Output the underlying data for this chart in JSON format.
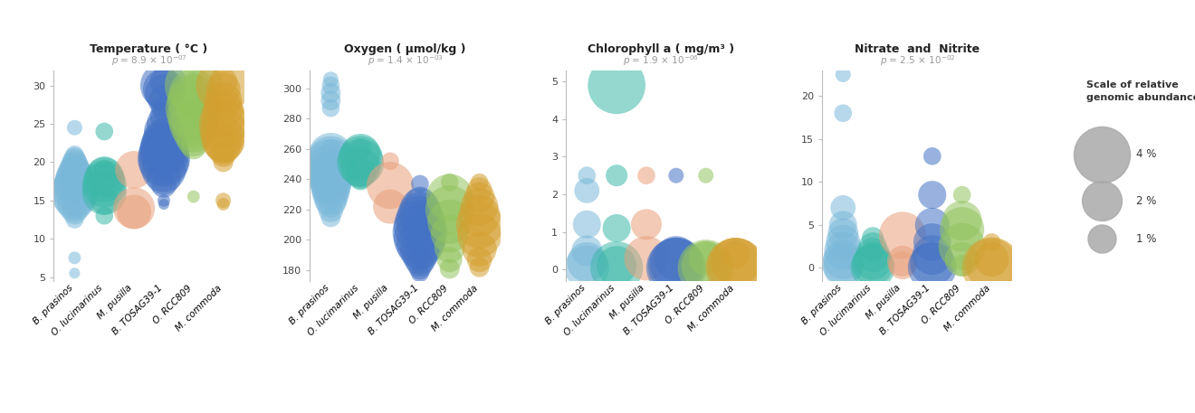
{
  "species": [
    "B. prasinos",
    "O. lucimarinus",
    "M. pusilla",
    "B. TOSAG39-1",
    "O. RCC809",
    "M. commoda"
  ],
  "species_colors": [
    "#7ab8d9",
    "#3cb8a8",
    "#e8a07a",
    "#4472c4",
    "#92c45e",
    "#d4a030"
  ],
  "panels": [
    {
      "title": "Temperature ( °C )",
      "pvalue_base": "p = 8.9 × 10",
      "pvalue_exp": "-07",
      "ylim": [
        4.5,
        32
      ],
      "yticks": [
        5,
        10,
        15,
        20,
        25,
        30
      ],
      "data": [
        {
          "y": [
            5.5,
            7.5,
            12.5,
            13.5,
            14.5,
            15.5,
            16.0,
            16.5,
            17.0,
            17.5,
            18.0,
            18.5,
            19.0,
            19.5,
            20.0,
            20.5,
            21.0,
            24.5
          ],
          "s": [
            0.15,
            0.2,
            0.4,
            0.8,
            1.5,
            2.5,
            2.8,
            2.5,
            2.2,
            2.0,
            1.8,
            1.5,
            1.2,
            1.0,
            0.8,
            0.6,
            0.4,
            0.3
          ]
        },
        {
          "y": [
            13.0,
            15.0,
            16.0,
            17.0,
            17.5,
            18.0,
            18.5,
            19.0,
            24.0
          ],
          "s": [
            0.4,
            1.0,
            2.5,
            2.5,
            2.2,
            2.0,
            1.5,
            0.5,
            0.4
          ]
        },
        {
          "y": [
            13.5,
            14.0,
            19.0
          ],
          "s": [
            1.5,
            2.2,
            1.8
          ]
        },
        {
          "y": [
            14.5,
            15.0,
            17.0,
            18.0,
            19.0,
            20.0,
            20.5,
            21.0,
            21.5,
            22.0,
            22.5,
            23.0,
            24.0,
            25.0,
            26.0,
            27.0,
            28.0,
            29.0,
            29.5,
            30.0,
            30.5
          ],
          "s": [
            0.15,
            0.2,
            0.8,
            1.5,
            2.5,
            3.2,
            3.5,
            3.2,
            3.0,
            2.8,
            2.5,
            2.2,
            2.0,
            1.5,
            1.0,
            0.8,
            1.2,
            1.8,
            2.2,
            2.8,
            1.0
          ]
        },
        {
          "y": [
            15.5,
            22.0,
            23.0,
            24.0,
            25.0,
            26.0,
            27.0,
            28.0,
            29.0,
            30.0,
            30.5
          ],
          "s": [
            0.2,
            0.8,
            1.5,
            2.2,
            3.0,
            3.5,
            4.0,
            3.5,
            3.0,
            4.2,
            0.5
          ]
        },
        {
          "y": [
            14.5,
            15.0,
            20.0,
            21.0,
            22.0,
            22.5,
            23.0,
            24.0,
            25.0,
            26.0,
            27.0,
            28.0,
            29.5,
            30.0,
            30.5
          ],
          "s": [
            0.2,
            0.3,
            0.5,
            0.8,
            1.5,
            2.0,
            2.5,
            2.8,
            3.0,
            2.5,
            2.0,
            1.8,
            1.5,
            3.8,
            1.0
          ]
        }
      ]
    },
    {
      "title": "Oxygen ( μmol/kg )",
      "pvalue_base": "p = 1.4 × 10",
      "pvalue_exp": "-03",
      "ylim": [
        173,
        312
      ],
      "yticks": [
        180,
        200,
        220,
        240,
        260,
        280,
        300
      ],
      "data": [
        {
          "y": [
            215,
            220,
            225,
            228,
            232,
            235,
            238,
            241,
            244,
            247,
            250,
            253,
            256,
            260,
            287,
            292,
            297,
            302,
            306
          ],
          "s": [
            0.5,
            0.8,
            1.2,
            1.5,
            1.8,
            2.0,
            2.2,
            2.5,
            2.8,
            3.0,
            3.2,
            2.8,
            2.5,
            0.5,
            0.4,
            0.5,
            0.5,
            0.4,
            0.3
          ]
        },
        {
          "y": [
            240,
            244,
            248,
            251,
            254,
            257,
            260
          ],
          "s": [
            0.6,
            1.2,
            2.0,
            2.8,
            2.5,
            2.0,
            0.6
          ]
        },
        {
          "y": [
            222,
            236,
            252
          ],
          "s": [
            1.5,
            2.8,
            0.4
          ]
        },
        {
          "y": [
            178,
            181,
            185,
            189,
            193,
            197,
            201,
            205,
            209,
            213,
            217,
            221,
            225,
            237
          ],
          "s": [
            0.4,
            0.6,
            1.0,
            1.5,
            2.0,
            2.8,
            3.5,
            3.8,
            3.5,
            3.0,
            2.5,
            2.0,
            1.2,
            0.4
          ]
        },
        {
          "y": [
            181,
            187,
            195,
            204,
            212,
            220,
            228,
            238
          ],
          "s": [
            0.5,
            0.8,
            1.2,
            1.8,
            2.5,
            3.0,
            2.8,
            0.4
          ]
        },
        {
          "y": [
            182,
            187,
            194,
            203,
            210,
            216,
            222,
            228,
            233,
            238
          ],
          "s": [
            0.5,
            0.8,
            1.5,
            2.5,
            2.8,
            2.2,
            1.8,
            1.2,
            0.8,
            0.4
          ]
        }
      ]
    },
    {
      "title": "Chlorophyll a ( mg/m³ )",
      "pvalue_base": "p = 1.9 × 10",
      "pvalue_exp": "-06",
      "ylim": [
        -0.3,
        5.3
      ],
      "yticks": [
        0,
        1,
        2,
        3,
        4,
        5
      ],
      "data": [
        {
          "y": [
            0.05,
            0.2,
            0.5,
            1.2,
            2.1,
            2.5
          ],
          "s": [
            2.5,
            2.0,
            1.2,
            1.0,
            0.8,
            0.4
          ]
        },
        {
          "y": [
            0.05,
            0.1,
            1.1,
            2.5,
            4.9
          ],
          "s": [
            3.5,
            2.0,
            1.0,
            0.6,
            4.2
          ]
        },
        {
          "y": [
            0.3,
            1.2,
            2.5
          ],
          "s": [
            2.5,
            1.2,
            0.4
          ]
        },
        {
          "y": [
            0.05,
            0.1,
            0.15,
            0.3,
            2.5
          ],
          "s": [
            4.5,
            4.0,
            3.5,
            2.5,
            0.3
          ]
        },
        {
          "y": [
            0.05,
            0.1,
            0.3,
            2.5
          ],
          "s": [
            4.0,
            3.0,
            1.5,
            0.3
          ]
        },
        {
          "y": [
            0.05,
            0.1,
            0.2,
            0.4
          ],
          "s": [
            4.5,
            4.0,
            3.0,
            1.0
          ]
        }
      ]
    },
    {
      "title": "Nitrate  and  Nitrite",
      "pvalue_base": "p = 2.5 × 10",
      "pvalue_exp": "-02",
      "ylim": [
        -1.5,
        23
      ],
      "yticks": [
        0,
        5,
        10,
        15,
        20
      ],
      "data": [
        {
          "y": [
            0.1,
            0.5,
            1.0,
            2.0,
            3.0,
            4.0,
            5.0,
            7.0,
            18.0,
            22.5
          ],
          "s": [
            2.0,
            2.2,
            2.0,
            1.8,
            1.5,
            1.2,
            1.0,
            0.8,
            0.4,
            0.3
          ]
        },
        {
          "y": [
            0.1,
            0.4,
            0.8,
            1.5,
            2.5,
            3.5
          ],
          "s": [
            2.5,
            2.2,
            1.8,
            1.5,
            1.0,
            0.6
          ]
        },
        {
          "y": [
            0.3,
            0.8,
            3.8
          ],
          "s": [
            1.0,
            1.2,
            2.8
          ]
        },
        {
          "y": [
            0.1,
            0.5,
            1.5,
            3.0,
            5.0,
            8.5,
            13.0
          ],
          "s": [
            3.0,
            2.5,
            2.0,
            1.8,
            1.5,
            1.0,
            0.4
          ]
        },
        {
          "y": [
            0.3,
            1.0,
            2.5,
            4.5,
            5.5,
            8.5
          ],
          "s": [
            0.6,
            1.5,
            2.8,
            2.5,
            2.0,
            0.4
          ]
        },
        {
          "y": [
            0.1,
            0.4,
            1.0,
            3.0
          ],
          "s": [
            4.5,
            3.5,
            1.5,
            0.4
          ]
        }
      ]
    }
  ],
  "legend_title": "Scale of relative\ngenomic abundances",
  "legend_sizes": [
    4.0,
    2.0,
    1.0
  ],
  "legend_labels": [
    "4 %",
    "2 %",
    "1 %"
  ],
  "size_scale": 500,
  "alpha": 0.55,
  "bg_color": "#ffffff"
}
